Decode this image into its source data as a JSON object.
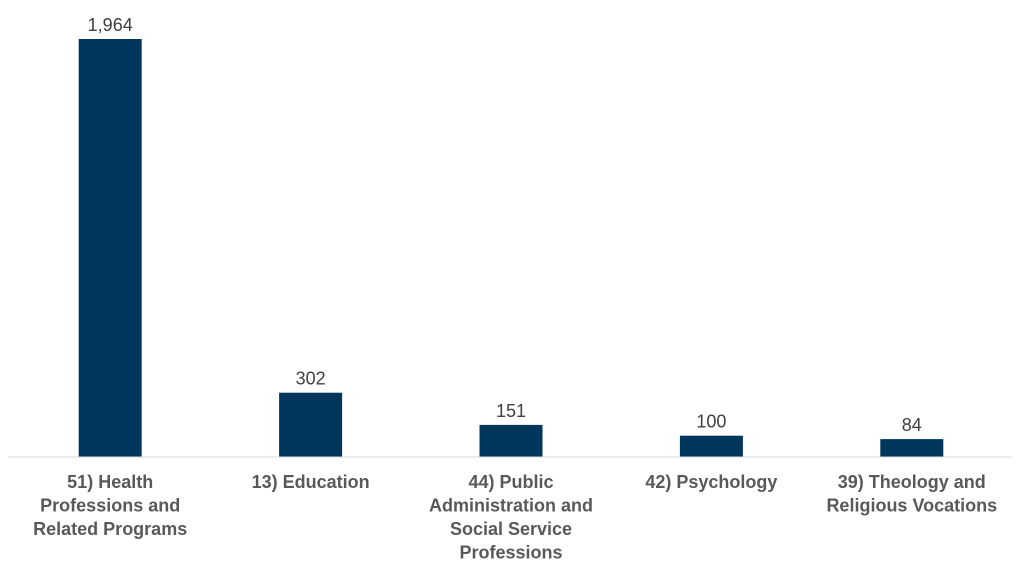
{
  "chart_data": {
    "type": "bar",
    "categories": [
      "51) Health Professions and Related Programs",
      "13) Education",
      "44) Public Administration and Social Service Professions",
      "42) Psychology",
      "39) Theology and Religious Vocations"
    ],
    "category_lines": [
      [
        "51) Health",
        "Professions and",
        "Related Programs"
      ],
      [
        "13) Education"
      ],
      [
        "44) Public",
        "Administration and",
        "Social Service",
        "Professions"
      ],
      [
        "42) Psychology"
      ],
      [
        "39) Theology and",
        "Religious Vocations"
      ]
    ],
    "values": [
      1964,
      302,
      151,
      100,
      84
    ],
    "value_labels": [
      "1,964",
      "302",
      "151",
      "100",
      "84"
    ],
    "title": "",
    "xlabel": "",
    "ylabel": "",
    "ylim": [
      0,
      1964
    ],
    "grid": false,
    "legend": "none",
    "bar_color": "#00365C",
    "axis_color": "#D9D9D9",
    "label_color": "#595959"
  }
}
